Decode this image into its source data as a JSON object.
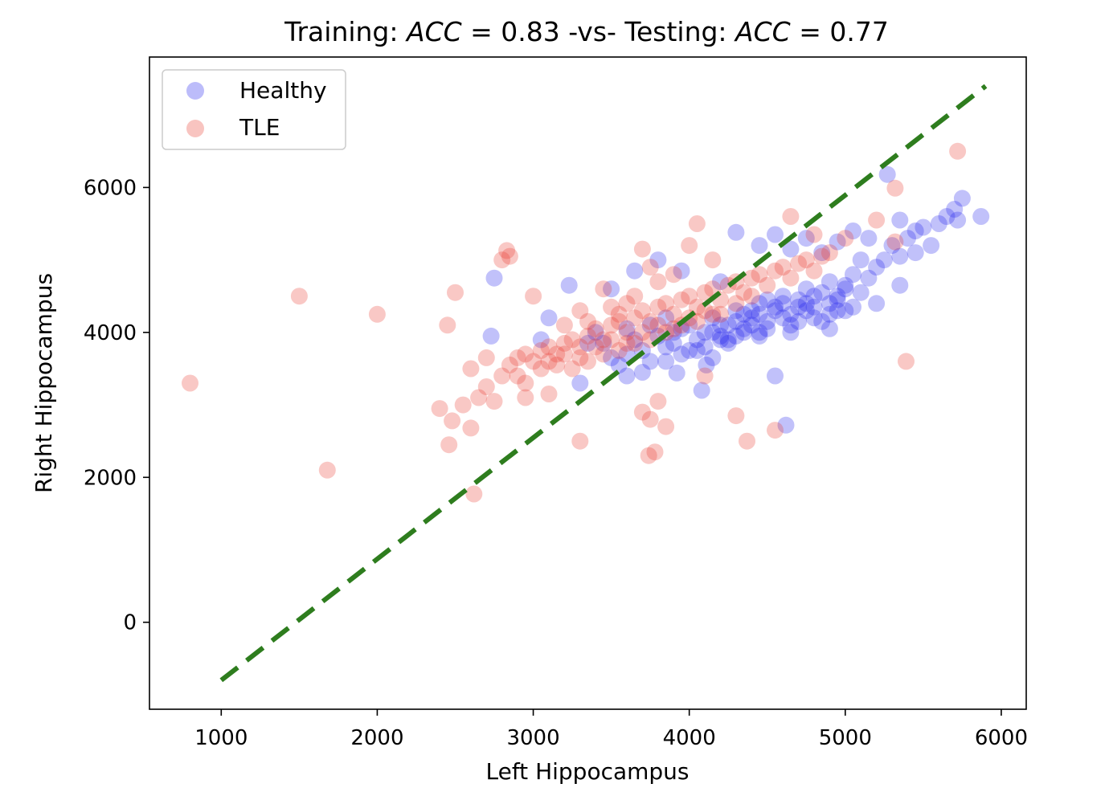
{
  "chart_data": {
    "type": "scatter",
    "title": {
      "part1": "Training: ",
      "acc1_sym": "ACC",
      "acc1_val": " = 0.83",
      "part2": "  -vs- Testing: ",
      "acc2_sym": "ACC",
      "acc2_val": " = 0.77"
    },
    "xlabel": "Left Hippocampus",
    "ylabel": "Right Hippocampus",
    "xlim": [
      540,
      6160
    ],
    "ylim": [
      -1200,
      7800
    ],
    "xticks": [
      1000,
      2000,
      3000,
      4000,
      5000,
      6000
    ],
    "yticks": [
      0,
      2000,
      4000,
      6000
    ],
    "grid": false,
    "legend_position": "top-left",
    "series": [
      {
        "name": "Healthy",
        "color": "#2020ee",
        "points": [
          [
            3350,
            3850
          ],
          [
            3500,
            3650
          ],
          [
            3600,
            3700
          ],
          [
            3650,
            3900
          ],
          [
            3700,
            3750
          ],
          [
            3750,
            3600
          ],
          [
            3800,
            3950
          ],
          [
            3850,
            3800
          ],
          [
            3900,
            4000
          ],
          [
            3950,
            3700
          ],
          [
            4000,
            4100
          ],
          [
            4050,
            3900
          ],
          [
            4100,
            4000
          ],
          [
            4150,
            4200
          ],
          [
            4200,
            3950
          ],
          [
            4250,
            4100
          ],
          [
            4300,
            4300
          ],
          [
            4350,
            4050
          ],
          [
            4400,
            4200
          ],
          [
            4450,
            4400
          ],
          [
            4500,
            4150
          ],
          [
            4550,
            4300
          ],
          [
            4600,
            4500
          ],
          [
            4650,
            4250
          ],
          [
            4700,
            4450
          ],
          [
            4750,
            4600
          ],
          [
            4800,
            4350
          ],
          [
            4850,
            4550
          ],
          [
            4900,
            4700
          ],
          [
            4950,
            4450
          ],
          [
            5000,
            4650
          ],
          [
            5050,
            4800
          ],
          [
            5100,
            4550
          ],
          [
            5150,
            4750
          ],
          [
            5200,
            4900
          ],
          [
            4100,
            3800
          ],
          [
            4200,
            4100
          ],
          [
            4300,
            3950
          ],
          [
            4400,
            4300
          ],
          [
            4500,
            4050
          ],
          [
            4600,
            4400
          ],
          [
            4700,
            4150
          ],
          [
            4800,
            4500
          ],
          [
            4900,
            4250
          ],
          [
            5000,
            4600
          ],
          [
            3900,
            3850
          ],
          [
            3950,
            4050
          ],
          [
            4050,
            3750
          ],
          [
            4150,
            4000
          ],
          [
            4250,
            3850
          ],
          [
            4350,
            4250
          ],
          [
            4450,
            4000
          ],
          [
            4550,
            4350
          ],
          [
            4650,
            4100
          ],
          [
            4750,
            4400
          ],
          [
            4850,
            4150
          ],
          [
            4950,
            4500
          ],
          [
            5050,
            4350
          ],
          [
            4300,
            4150
          ],
          [
            4450,
            4250
          ],
          [
            4600,
            4200
          ],
          [
            4750,
            4300
          ],
          [
            4900,
            4400
          ],
          [
            4400,
            4100
          ],
          [
            4500,
            4450
          ],
          [
            4700,
            4350
          ],
          [
            4800,
            4200
          ],
          [
            4950,
            4300
          ],
          [
            4200,
            3900
          ],
          [
            4350,
            4000
          ],
          [
            5300,
            5200
          ],
          [
            5350,
            5050
          ],
          [
            5400,
            5300
          ],
          [
            5450,
            5100
          ],
          [
            5500,
            5450
          ],
          [
            5550,
            5200
          ],
          [
            5250,
            5000
          ],
          [
            5150,
            5300
          ],
          [
            5050,
            5400
          ],
          [
            4950,
            5250
          ],
          [
            4850,
            5100
          ],
          [
            4750,
            5300
          ],
          [
            4650,
            5150
          ],
          [
            4550,
            5350
          ],
          [
            4450,
            5200
          ],
          [
            5600,
            5500
          ],
          [
            5650,
            5600
          ],
          [
            5700,
            5700
          ],
          [
            5720,
            5550
          ],
          [
            5750,
            5850
          ],
          [
            5870,
            5600
          ],
          [
            5270,
            6180
          ],
          [
            5350,
            5550
          ],
          [
            5450,
            5400
          ],
          [
            5100,
            5000
          ],
          [
            4300,
            5380
          ],
          [
            4200,
            4700
          ],
          [
            3950,
            4850
          ],
          [
            3800,
            5000
          ],
          [
            3650,
            4850
          ],
          [
            3500,
            4600
          ],
          [
            2750,
            4750
          ],
          [
            3230,
            4650
          ],
          [
            2730,
            3950
          ],
          [
            3300,
            3300
          ],
          [
            3600,
            3400
          ],
          [
            3920,
            3440
          ],
          [
            4080,
            3200
          ],
          [
            4110,
            3550
          ],
          [
            4550,
            3400
          ],
          [
            4620,
            2720
          ],
          [
            5350,
            4650
          ],
          [
            5200,
            4400
          ],
          [
            5000,
            4300
          ],
          [
            4900,
            4050
          ],
          [
            4650,
            4000
          ],
          [
            4450,
            3950
          ],
          [
            4250,
            3900
          ],
          [
            3700,
            3450
          ],
          [
            3550,
            3550
          ],
          [
            3850,
            3600
          ],
          [
            4000,
            3750
          ],
          [
            4150,
            3650
          ],
          [
            3750,
            4100
          ],
          [
            3850,
            4200
          ],
          [
            3600,
            4050
          ],
          [
            3450,
            3850
          ],
          [
            3400,
            4000
          ],
          [
            3100,
            4200
          ],
          [
            3050,
            3900
          ]
        ]
      },
      {
        "name": "TLE",
        "color": "#e83a2e",
        "points": [
          [
            800,
            3300
          ],
          [
            1500,
            4500
          ],
          [
            1680,
            2100
          ],
          [
            2000,
            4250
          ],
          [
            2450,
            4100
          ],
          [
            2500,
            4550
          ],
          [
            2600,
            2680
          ],
          [
            2620,
            1770
          ],
          [
            2800,
            5000
          ],
          [
            2830,
            5130
          ],
          [
            2850,
            5050
          ],
          [
            3000,
            4500
          ],
          [
            2400,
            2950
          ],
          [
            2480,
            2780
          ],
          [
            2460,
            2450
          ],
          [
            2550,
            3000
          ],
          [
            2650,
            3100
          ],
          [
            2700,
            3250
          ],
          [
            2750,
            3050
          ],
          [
            2800,
            3400
          ],
          [
            2850,
            3550
          ],
          [
            2900,
            3650
          ],
          [
            2950,
            3700
          ],
          [
            3000,
            3600
          ],
          [
            3050,
            3750
          ],
          [
            3100,
            3800
          ],
          [
            3150,
            3700
          ],
          [
            3200,
            3850
          ],
          [
            3250,
            3900
          ],
          [
            3300,
            3800
          ],
          [
            3350,
            3950
          ],
          [
            3400,
            4050
          ],
          [
            3450,
            3900
          ],
          [
            3500,
            4100
          ],
          [
            3550,
            4150
          ],
          [
            3600,
            4000
          ],
          [
            3650,
            4200
          ],
          [
            3700,
            4300
          ],
          [
            3750,
            4150
          ],
          [
            3800,
            4350
          ],
          [
            3850,
            4400
          ],
          [
            3900,
            4250
          ],
          [
            3950,
            4450
          ],
          [
            4000,
            4500
          ],
          [
            4050,
            4350
          ],
          [
            4100,
            4550
          ],
          [
            4150,
            4600
          ],
          [
            4200,
            4450
          ],
          [
            4250,
            4650
          ],
          [
            4300,
            4700
          ],
          [
            4350,
            4550
          ],
          [
            4400,
            4750
          ],
          [
            4450,
            4800
          ],
          [
            4500,
            4650
          ],
          [
            4550,
            4850
          ],
          [
            4600,
            4900
          ],
          [
            4650,
            4750
          ],
          [
            4700,
            4950
          ],
          [
            4750,
            5000
          ],
          [
            4800,
            4850
          ],
          [
            4850,
            5050
          ],
          [
            4900,
            5100
          ],
          [
            3100,
            3600
          ],
          [
            3200,
            3700
          ],
          [
            3300,
            3650
          ],
          [
            3400,
            3800
          ],
          [
            3500,
            3900
          ],
          [
            3600,
            3850
          ],
          [
            3700,
            4000
          ],
          [
            3800,
            4100
          ],
          [
            3900,
            4050
          ],
          [
            4000,
            4200
          ],
          [
            4100,
            4300
          ],
          [
            4200,
            4250
          ],
          [
            4300,
            4400
          ],
          [
            4400,
            4500
          ],
          [
            3250,
            3500
          ],
          [
            3350,
            3600
          ],
          [
            3450,
            3700
          ],
          [
            3550,
            3750
          ],
          [
            3650,
            3850
          ],
          [
            3750,
            3900
          ],
          [
            3850,
            4000
          ],
          [
            3950,
            4100
          ],
          [
            4050,
            4150
          ],
          [
            4150,
            4250
          ],
          [
            2900,
            3400
          ],
          [
            2950,
            3300
          ],
          [
            3050,
            3500
          ],
          [
            3150,
            3550
          ],
          [
            3750,
            4900
          ],
          [
            3800,
            4700
          ],
          [
            3900,
            4800
          ],
          [
            4000,
            5200
          ],
          [
            4050,
            5500
          ],
          [
            4150,
            5000
          ],
          [
            3700,
            5150
          ],
          [
            4650,
            5600
          ],
          [
            4800,
            5350
          ],
          [
            5000,
            5300
          ],
          [
            5200,
            5550
          ],
          [
            5320,
            5250
          ],
          [
            5720,
            6500
          ],
          [
            5320,
            5990
          ],
          [
            5390,
            3600
          ],
          [
            4100,
            3400
          ],
          [
            3800,
            3050
          ],
          [
            3750,
            2800
          ],
          [
            3850,
            2700
          ],
          [
            3700,
            2900
          ],
          [
            3780,
            2350
          ],
          [
            3740,
            2300
          ],
          [
            3300,
            2500
          ],
          [
            4300,
            2850
          ],
          [
            4370,
            2500
          ],
          [
            4550,
            2650
          ],
          [
            2950,
            3100
          ],
          [
            3100,
            3150
          ],
          [
            2600,
            3500
          ],
          [
            2700,
            3650
          ],
          [
            3650,
            4500
          ],
          [
            3600,
            4400
          ],
          [
            3450,
            4600
          ],
          [
            3300,
            4300
          ],
          [
            3200,
            4100
          ],
          [
            3350,
            4150
          ],
          [
            3500,
            4350
          ],
          [
            3550,
            4250
          ]
        ]
      }
    ],
    "reference_line": {
      "style": "dashed",
      "color": "#2e7d1e",
      "from": [
        1000,
        -800
      ],
      "to": [
        5900,
        7400
      ]
    }
  }
}
